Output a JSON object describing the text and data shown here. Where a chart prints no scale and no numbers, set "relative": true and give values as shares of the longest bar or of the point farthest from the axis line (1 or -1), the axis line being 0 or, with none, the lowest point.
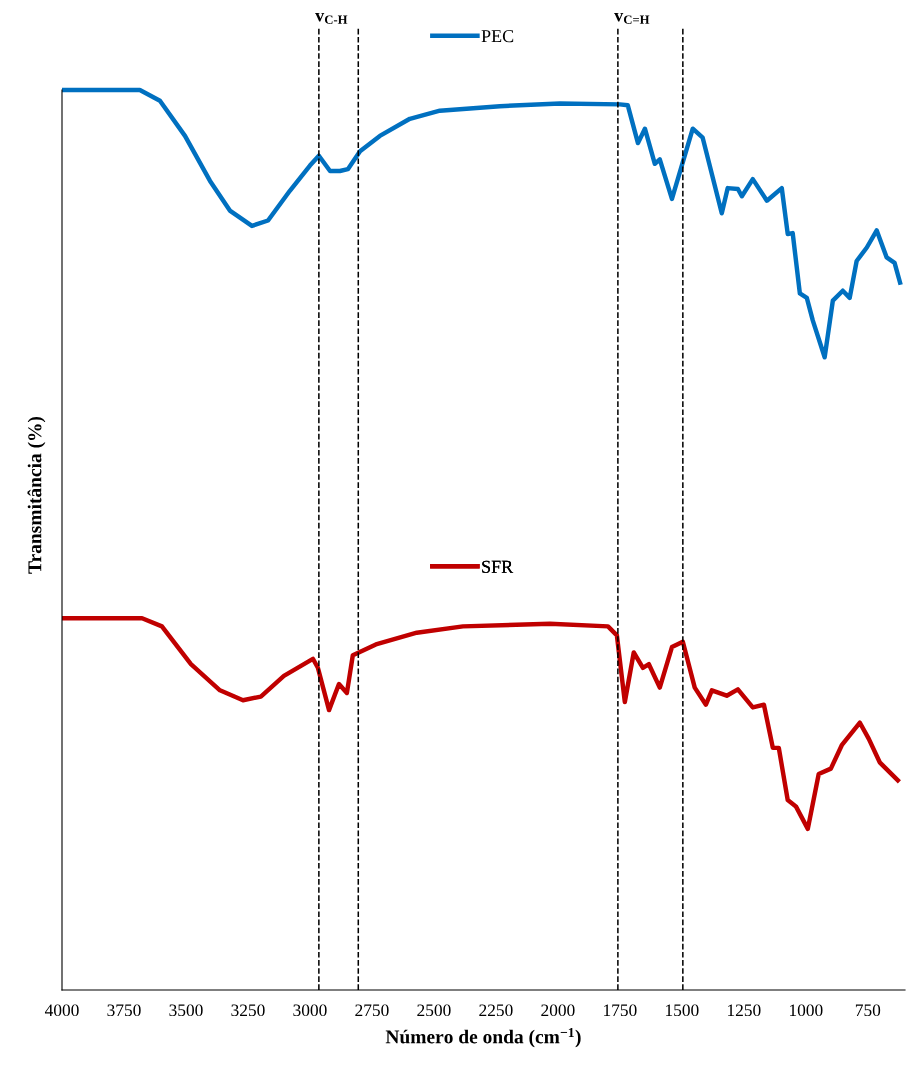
{
  "chart_data": {
    "type": "line",
    "relative": true,
    "xlabel": "Número de onda (cm$^{−1}$)",
    "ylabel": "Transmitância (%)",
    "xlim": [
      4000,
      600
    ],
    "xticks": [
      4000,
      3750,
      3500,
      3250,
      3000,
      2750,
      2500,
      2250,
      2000,
      1750,
      1500,
      1250,
      1000,
      750
    ],
    "legend": "top",
    "grid": false,
    "marker": "none",
    "line_style": "solid",
    "ref_lines": [
      {
        "axis": "x",
        "value": 2964,
        "label": "v$_{C-H}$",
        "line_style": "dashed",
        "color": "#000000"
      },
      {
        "axis": "x",
        "value": 2805,
        "line_style": "dashed",
        "color": "#000000"
      },
      {
        "axis": "x",
        "value": 1758,
        "label": "v$_{C=H}$",
        "line_style": "dashed",
        "color": "#000000"
      },
      {
        "axis": "x",
        "value": 1496,
        "line_style": "dashed",
        "color": "#000000"
      }
    ],
    "series": [
      {
        "name": "PEC",
        "color": "#0070c0",
        "x": [
          4000,
          3686,
          3605,
          3504,
          3403,
          3323,
          3234,
          3169,
          3081,
          3000,
          2964,
          2919,
          2879,
          2847,
          2798,
          2718,
          2597,
          2476,
          2234,
          1992,
          1750,
          1718,
          1677,
          1649,
          1609,
          1589,
          1540,
          1456,
          1416,
          1339,
          1315,
          1274,
          1258,
          1214,
          1157,
          1097,
          1073,
          1053,
          1024,
          996,
          972,
          924,
          891,
          851,
          823,
          795,
          754,
          714,
          674,
          642,
          620
        ],
        "values": [
          1.0,
          1.0,
          0.988,
          0.949,
          0.899,
          0.866,
          0.849,
          0.855,
          0.888,
          0.916,
          0.927,
          0.91,
          0.91,
          0.912,
          0.932,
          0.949,
          0.968,
          0.977,
          0.982,
          0.985,
          0.984,
          0.983,
          0.941,
          0.957,
          0.918,
          0.923,
          0.879,
          0.957,
          0.947,
          0.863,
          0.891,
          0.89,
          0.882,
          0.901,
          0.877,
          0.891,
          0.84,
          0.841,
          0.774,
          0.769,
          0.744,
          0.703,
          0.766,
          0.777,
          0.769,
          0.81,
          0.825,
          0.844,
          0.814,
          0.808,
          0.786
        ]
      },
      {
        "name": "SFR",
        "color": "#c00000",
        "x": [
          4000,
          3677,
          3597,
          3480,
          3363,
          3270,
          3198,
          3105,
          2988,
          2968,
          2923,
          2883,
          2851,
          2827,
          2734,
          2569,
          2383,
          2032,
          1798,
          1762,
          1730,
          1694,
          1657,
          1633,
          1589,
          1540,
          1496,
          1448,
          1403,
          1379,
          1319,
          1274,
          1214,
          1169,
          1133,
          1109,
          1073,
          1040,
          992,
          948,
          899,
          855,
          782,
          746,
          702,
          629
        ],
        "values": [
          0.413,
          0.413,
          0.404,
          0.362,
          0.333,
          0.322,
          0.326,
          0.349,
          0.368,
          0.358,
          0.311,
          0.34,
          0.33,
          0.372,
          0.384,
          0.397,
          0.404,
          0.407,
          0.404,
          0.394,
          0.32,
          0.375,
          0.358,
          0.362,
          0.336,
          0.381,
          0.387,
          0.336,
          0.317,
          0.333,
          0.327,
          0.334,
          0.314,
          0.317,
          0.269,
          0.269,
          0.211,
          0.204,
          0.179,
          0.24,
          0.246,
          0.272,
          0.297,
          0.279,
          0.253,
          0.233
        ]
      }
    ]
  }
}
